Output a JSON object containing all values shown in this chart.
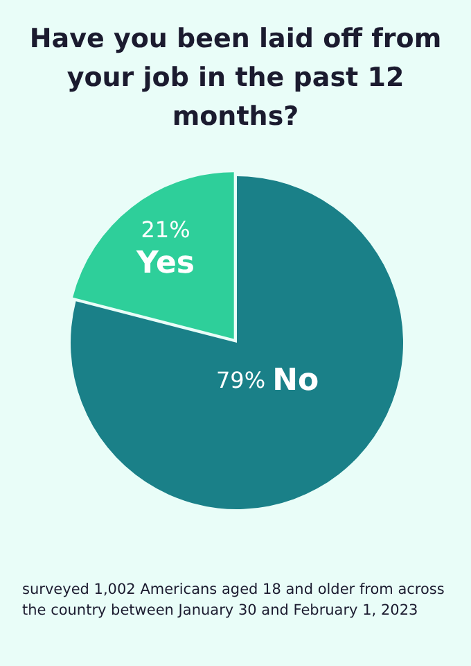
{
  "chart_data": {
    "type": "pie",
    "title": "Have you been laid off from your job in the past 12 months?",
    "categories": [
      "Yes",
      "No"
    ],
    "values": [
      21,
      79
    ],
    "colors": [
      "#2ecf9a",
      "#1a8088"
    ],
    "value_labels": [
      "21%",
      "79%"
    ],
    "annotations": [
      "surveyed 1,002 Americans aged 18 and older from across the country between January 30 and February 1, 2023"
    ]
  }
}
